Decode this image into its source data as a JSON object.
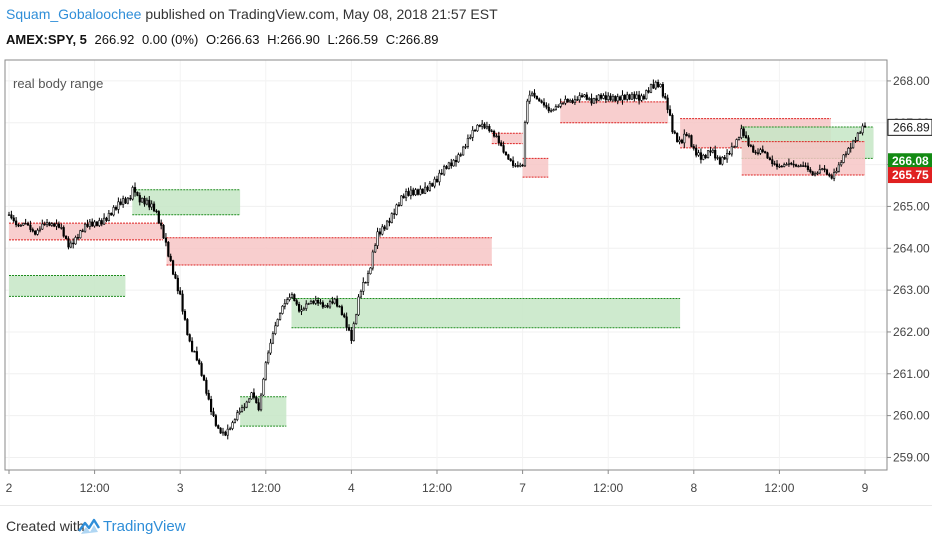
{
  "header": {
    "author": "Squam_Gobaloochee",
    "published_text": "published on TradingView.com, May 08, 2018 21:57 EST",
    "symbol": "AMEX:SPY, 5",
    "last": "266.92",
    "change": "0.00 (0%)",
    "open": "O:266.63",
    "high": "H:266.90",
    "low": "L:266.59",
    "close": "C:266.89"
  },
  "footer": {
    "created_with": "Created with",
    "brand": "TradingView"
  },
  "colors": {
    "bull_zone_fill": "#c6e6c6",
    "bull_zone_line": "#1e8c1e",
    "bear_zone_fill": "#f7c6c6",
    "bear_zone_line": "#dd2020",
    "candle": "#000000",
    "badge_green": "#138a13",
    "badge_red": "#e02020",
    "badge_dark": "#1a1a1a",
    "link": "#2f8ed8"
  },
  "chart_data": {
    "type": "candlestick",
    "indicator_label": "real body range",
    "ylim": [
      258.7,
      268.5
    ],
    "y_ticks": [
      259.0,
      260.0,
      261.0,
      262.0,
      263.0,
      264.0,
      265.0,
      266.0,
      267.0,
      268.0
    ],
    "y_tick_labels": [
      "259.00",
      "260.00",
      "261.00",
      "262.00",
      "263.00",
      "264.00",
      "265.00",
      "266.00",
      "267.00",
      "268.00"
    ],
    "x_ticks": [
      {
        "label": "2",
        "x": 0
      },
      {
        "label": "12:00",
        "x": 0.5
      },
      {
        "label": "3",
        "x": 1.0
      },
      {
        "label": "12:00",
        "x": 1.5
      },
      {
        "label": "4",
        "x": 2.0
      },
      {
        "label": "12:00",
        "x": 2.5
      },
      {
        "label": "7",
        "x": 3.0
      },
      {
        "label": "12:00",
        "x": 3.5
      },
      {
        "label": "8",
        "x": 4.0
      },
      {
        "label": "12:00",
        "x": 4.5
      },
      {
        "label": "9",
        "x": 5.0
      }
    ],
    "price_badges": [
      {
        "label": "266.89",
        "value": 266.89,
        "style": "dark"
      },
      {
        "label": "266.08",
        "value": 266.08,
        "style": "green"
      },
      {
        "label": "265.75",
        "value": 265.75,
        "style": "red"
      }
    ],
    "zones": [
      {
        "type": "bear",
        "x0": 0.0,
        "x1": 0.9,
        "top": 264.6,
        "bottom": 264.2
      },
      {
        "type": "bull",
        "x0": 0.0,
        "x1": 0.68,
        "top": 263.35,
        "bottom": 262.85
      },
      {
        "type": "bull",
        "x0": 0.72,
        "x1": 1.35,
        "top": 265.4,
        "bottom": 264.8
      },
      {
        "type": "bear",
        "x0": 0.92,
        "x1": 2.82,
        "top": 264.25,
        "bottom": 263.6
      },
      {
        "type": "bull",
        "x0": 1.35,
        "x1": 1.62,
        "top": 260.45,
        "bottom": 259.75
      },
      {
        "type": "bull",
        "x0": 1.65,
        "x1": 3.92,
        "top": 262.8,
        "bottom": 262.1
      },
      {
        "type": "bear",
        "x0": 2.82,
        "x1": 3.0,
        "top": 266.75,
        "bottom": 266.5
      },
      {
        "type": "bear",
        "x0": 3.0,
        "x1": 3.15,
        "top": 266.15,
        "bottom": 265.7
      },
      {
        "type": "bear",
        "x0": 3.22,
        "x1": 3.85,
        "top": 267.5,
        "bottom": 267.0
      },
      {
        "type": "bear",
        "x0": 3.92,
        "x1": 4.8,
        "top": 267.1,
        "bottom": 266.4
      },
      {
        "type": "bull",
        "x0": 4.28,
        "x1": 5.05,
        "top": 266.9,
        "bottom": 266.15
      },
      {
        "type": "bear",
        "x0": 4.28,
        "x1": 5.0,
        "top": 266.55,
        "bottom": 265.75
      }
    ],
    "price_path": [
      [
        0.0,
        264.8
      ],
      [
        0.05,
        264.45
      ],
      [
        0.1,
        264.6
      ],
      [
        0.15,
        264.4
      ],
      [
        0.2,
        264.6
      ],
      [
        0.25,
        264.5
      ],
      [
        0.3,
        264.5
      ],
      [
        0.35,
        264.1
      ],
      [
        0.4,
        264.3
      ],
      [
        0.45,
        264.5
      ],
      [
        0.5,
        264.55
      ],
      [
        0.55,
        264.7
      ],
      [
        0.6,
        264.9
      ],
      [
        0.65,
        265.05
      ],
      [
        0.7,
        265.1
      ],
      [
        0.73,
        265.5
      ],
      [
        0.75,
        265.25
      ],
      [
        0.8,
        265.15
      ],
      [
        0.85,
        264.9
      ],
      [
        0.9,
        264.3
      ],
      [
        0.95,
        263.6
      ],
      [
        1.0,
        262.9
      ],
      [
        1.03,
        262.2
      ],
      [
        1.06,
        261.6
      ],
      [
        1.1,
        261.3
      ],
      [
        1.14,
        260.8
      ],
      [
        1.18,
        260.2
      ],
      [
        1.22,
        259.7
      ],
      [
        1.26,
        259.5
      ],
      [
        1.3,
        259.7
      ],
      [
        1.34,
        260.1
      ],
      [
        1.38,
        260.3
      ],
      [
        1.42,
        260.6
      ],
      [
        1.46,
        260.1
      ],
      [
        1.5,
        261.2
      ],
      [
        1.55,
        262.1
      ],
      [
        1.6,
        262.7
      ],
      [
        1.65,
        262.9
      ],
      [
        1.7,
        262.4
      ],
      [
        1.75,
        262.7
      ],
      [
        1.8,
        262.8
      ],
      [
        1.85,
        262.6
      ],
      [
        1.9,
        262.7
      ],
      [
        1.95,
        262.4
      ],
      [
        2.0,
        261.9
      ],
      [
        2.05,
        263.0
      ],
      [
        2.1,
        263.3
      ],
      [
        2.15,
        264.3
      ],
      [
        2.2,
        264.6
      ],
      [
        2.25,
        264.9
      ],
      [
        2.3,
        265.2
      ],
      [
        2.35,
        265.3
      ],
      [
        2.4,
        265.4
      ],
      [
        2.45,
        265.5
      ],
      [
        2.5,
        265.6
      ],
      [
        2.55,
        265.9
      ],
      [
        2.6,
        266.1
      ],
      [
        2.65,
        266.4
      ],
      [
        2.7,
        266.7
      ],
      [
        2.75,
        266.9
      ],
      [
        2.8,
        266.9
      ],
      [
        2.85,
        266.7
      ],
      [
        2.9,
        266.2
      ],
      [
        2.95,
        265.9
      ],
      [
        3.0,
        266.0
      ],
      [
        3.02,
        267.5
      ],
      [
        3.05,
        267.8
      ],
      [
        3.08,
        267.6
      ],
      [
        3.12,
        267.4
      ],
      [
        3.16,
        267.2
      ],
      [
        3.2,
        267.4
      ],
      [
        3.25,
        267.6
      ],
      [
        3.3,
        267.5
      ],
      [
        3.35,
        267.6
      ],
      [
        3.4,
        267.5
      ],
      [
        3.45,
        267.7
      ],
      [
        3.5,
        267.6
      ],
      [
        3.55,
        267.5
      ],
      [
        3.6,
        267.6
      ],
      [
        3.65,
        267.7
      ],
      [
        3.7,
        267.6
      ],
      [
        3.75,
        267.8
      ],
      [
        3.8,
        267.9
      ],
      [
        3.85,
        267.4
      ],
      [
        3.88,
        266.8
      ],
      [
        3.92,
        266.5
      ],
      [
        3.96,
        266.7
      ],
      [
        4.0,
        266.3
      ],
      [
        4.05,
        266.2
      ],
      [
        4.1,
        266.4
      ],
      [
        4.15,
        266.0
      ],
      [
        4.2,
        266.2
      ],
      [
        4.25,
        266.6
      ],
      [
        4.28,
        266.9
      ],
      [
        4.32,
        266.5
      ],
      [
        4.36,
        266.2
      ],
      [
        4.4,
        266.3
      ],
      [
        4.45,
        266.1
      ],
      [
        4.5,
        266.0
      ],
      [
        4.55,
        266.0
      ],
      [
        4.6,
        265.9
      ],
      [
        4.65,
        266.0
      ],
      [
        4.7,
        265.8
      ],
      [
        4.75,
        265.9
      ],
      [
        4.8,
        265.6
      ],
      [
        4.84,
        265.9
      ],
      [
        4.88,
        266.3
      ],
      [
        4.92,
        266.5
      ],
      [
        4.96,
        266.7
      ],
      [
        5.0,
        266.89
      ]
    ]
  }
}
